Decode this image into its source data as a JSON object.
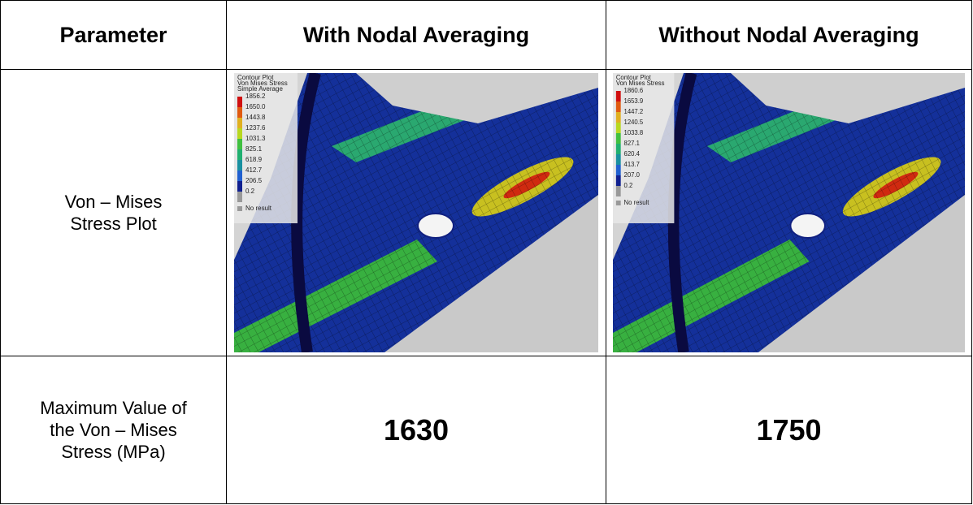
{
  "table": {
    "header": [
      "Parameter",
      "With Nodal Averaging",
      "Without Nodal Averaging"
    ],
    "rows": [
      [
        "Von – Mises Stress Plot",
        {
          "legend_title": [
            "Contour Plot",
            "Von Mises Stress",
            "Simple Average"
          ],
          "legend_values": [
            "1856.2",
            "1650.0",
            "1443.8",
            "1237.6",
            "1031.3",
            "825.1",
            "618.9",
            "412.7",
            "206.5",
            "0.2"
          ],
          "no_result": "No result"
        },
        {
          "legend_title": [
            "Contour Plot",
            "Von Mises Stress"
          ],
          "legend_values": [
            "1860.6",
            "1653.9",
            "1447.2",
            "1240.5",
            "1033.8",
            "827.1",
            "620.4",
            "413.7",
            "207.0",
            "0.2"
          ],
          "no_result": "No result"
        }
      ],
      [
        "Maximum Value of the Von – Mises Stress (MPa)",
        "1630",
        "1750"
      ]
    ]
  }
}
